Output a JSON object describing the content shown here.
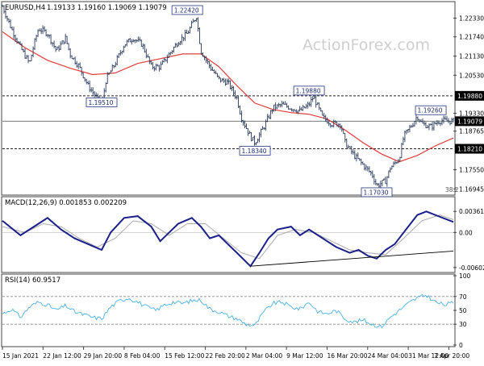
{
  "chart_data": [
    {
      "type": "candlestick-line",
      "panel": "price",
      "title": "EURUSD,H4",
      "ohlc_label": "1.19133 1.19160 1.19069 1.19079",
      "watermark": "ActionForex.com",
      "ylim": [
        1.168,
        1.228
      ],
      "y_ticks": [
        "1.22330",
        "1.21740",
        "1.21130",
        "1.20530",
        "1.19330",
        "1.18765",
        "1.17550",
        "1.16945"
      ],
      "y_tick_values": [
        1.2233,
        1.2174,
        1.2113,
        1.2053,
        1.1933,
        1.18765,
        1.1755,
        1.16945
      ],
      "h_lines": [
        {
          "label": "1.19880",
          "value": 1.1988,
          "style": "dashed"
        },
        {
          "label": "1.19079",
          "value": 1.19079,
          "style": "solid"
        },
        {
          "label": "1.18210",
          "value": 1.1821,
          "style": "dashed"
        }
      ],
      "callouts": [
        {
          "label": "1.22420",
          "x": 0.41,
          "value": 1.2242
        },
        {
          "label": "1.19510",
          "x": 0.22,
          "value": 1.1951
        },
        {
          "label": "1.18340",
          "x": 0.56,
          "value": 1.1834
        },
        {
          "label": "1.19880",
          "x": 0.68,
          "value": 1.1988
        },
        {
          "label": "1.17030",
          "x": 0.83,
          "value": 1.1703
        },
        {
          "label": "1.19260",
          "x": 0.95,
          "value": 1.1926
        }
      ],
      "fib_label": "38.2",
      "price": [
        [
          0.0,
          1.227
        ],
        [
          0.02,
          1.22
        ],
        [
          0.04,
          1.214
        ],
        [
          0.06,
          1.209
        ],
        [
          0.07,
          1.215
        ],
        [
          0.08,
          1.22
        ],
        [
          0.1,
          1.2185
        ],
        [
          0.12,
          1.213
        ],
        [
          0.14,
          1.217
        ],
        [
          0.15,
          1.212
        ],
        [
          0.17,
          1.208
        ],
        [
          0.19,
          1.202
        ],
        [
          0.21,
          1.198
        ],
        [
          0.22,
          1.1955
        ],
        [
          0.23,
          1.204
        ],
        [
          0.25,
          1.209
        ],
        [
          0.27,
          1.215
        ],
        [
          0.29,
          1.217
        ],
        [
          0.31,
          1.215
        ],
        [
          0.33,
          1.208
        ],
        [
          0.35,
          1.208
        ],
        [
          0.37,
          1.212
        ],
        [
          0.39,
          1.216
        ],
        [
          0.41,
          1.2185
        ],
        [
          0.43,
          1.224
        ],
        [
          0.44,
          1.213
        ],
        [
          0.46,
          1.208
        ],
        [
          0.48,
          1.204
        ],
        [
          0.5,
          1.203
        ],
        [
          0.52,
          1.198
        ],
        [
          0.53,
          1.192
        ],
        [
          0.55,
          1.186
        ],
        [
          0.56,
          1.184
        ],
        [
          0.58,
          1.189
        ],
        [
          0.6,
          1.195
        ],
        [
          0.62,
          1.196
        ],
        [
          0.64,
          1.195
        ],
        [
          0.66,
          1.194
        ],
        [
          0.68,
          1.196
        ],
        [
          0.69,
          1.1985
        ],
        [
          0.71,
          1.192
        ],
        [
          0.73,
          1.19
        ],
        [
          0.75,
          1.19
        ],
        [
          0.76,
          1.184
        ],
        [
          0.78,
          1.18
        ],
        [
          0.8,
          1.177
        ],
        [
          0.82,
          1.174
        ],
        [
          0.83,
          1.1705
        ],
        [
          0.85,
          1.172
        ],
        [
          0.86,
          1.176
        ],
        [
          0.88,
          1.179
        ],
        [
          0.89,
          1.186
        ],
        [
          0.91,
          1.19
        ],
        [
          0.92,
          1.1925
        ],
        [
          0.93,
          1.19
        ],
        [
          0.95,
          1.189
        ],
        [
          0.97,
          1.191
        ],
        [
          1.0,
          1.1908
        ]
      ],
      "ma": [
        [
          0.0,
          1.219
        ],
        [
          0.05,
          1.214
        ],
        [
          0.1,
          1.21
        ],
        [
          0.15,
          1.2075
        ],
        [
          0.2,
          1.2055
        ],
        [
          0.25,
          1.206
        ],
        [
          0.3,
          1.209
        ],
        [
          0.35,
          1.2105
        ],
        [
          0.4,
          1.212
        ],
        [
          0.44,
          1.212
        ],
        [
          0.48,
          1.208
        ],
        [
          0.52,
          1.202
        ],
        [
          0.56,
          1.1965
        ],
        [
          0.6,
          1.1945
        ],
        [
          0.64,
          1.1935
        ],
        [
          0.68,
          1.193
        ],
        [
          0.72,
          1.1915
        ],
        [
          0.76,
          1.188
        ],
        [
          0.8,
          1.184
        ],
        [
          0.84,
          1.1805
        ],
        [
          0.88,
          1.178
        ],
        [
          0.92,
          1.18
        ],
        [
          0.96,
          1.183
        ],
        [
          1.0,
          1.1855
        ]
      ]
    },
    {
      "type": "line",
      "panel": "macd",
      "title": "MACD(12,26,9) 0.001853 0.002209",
      "ylim": [
        -0.0066,
        0.0042
      ],
      "y_ticks": [
        "0.003615",
        "0.00",
        "-0.006026"
      ],
      "y_tick_values": [
        0.003615,
        0.0,
        -0.006026
      ],
      "series": [
        {
          "name": "",
          "values": [
            [
              0.0,
              0.002
            ],
            [
              0.04,
              -0.0005
            ],
            [
              0.07,
              0.001
            ],
            [
              0.1,
              0.0025
            ],
            [
              0.13,
              0.0005
            ],
            [
              0.16,
              -0.001
            ],
            [
              0.19,
              -0.002
            ],
            [
              0.22,
              -0.003
            ],
            [
              0.24,
              0.0
            ],
            [
              0.27,
              0.0025
            ],
            [
              0.3,
              0.0028
            ],
            [
              0.33,
              0.001
            ],
            [
              0.35,
              -0.0015
            ],
            [
              0.37,
              0.0
            ],
            [
              0.39,
              0.0015
            ],
            [
              0.42,
              0.0025
            ],
            [
              0.44,
              0.001
            ],
            [
              0.46,
              -0.001
            ],
            [
              0.48,
              -0.0005
            ],
            [
              0.5,
              -0.002
            ],
            [
              0.52,
              -0.0035
            ],
            [
              0.55,
              -0.0058
            ],
            [
              0.57,
              -0.0035
            ],
            [
              0.59,
              -0.001
            ],
            [
              0.61,
              0.0005
            ],
            [
              0.64,
              0.001
            ],
            [
              0.66,
              -0.0005
            ],
            [
              0.68,
              0.0005
            ],
            [
              0.7,
              -0.0005
            ],
            [
              0.72,
              -0.0015
            ],
            [
              0.74,
              -0.0025
            ],
            [
              0.77,
              -0.0035
            ],
            [
              0.79,
              -0.003
            ],
            [
              0.81,
              -0.004
            ],
            [
              0.83,
              -0.0045
            ],
            [
              0.85,
              -0.003
            ],
            [
              0.87,
              -0.002
            ],
            [
              0.89,
              0.0
            ],
            [
              0.92,
              0.003
            ],
            [
              0.94,
              0.0036
            ],
            [
              0.96,
              0.003
            ],
            [
              1.0,
              0.0018
            ]
          ]
        },
        {
          "name": "",
          "values": [
            [
              0.0,
              0.001
            ],
            [
              0.05,
              0.0
            ],
            [
              0.09,
              0.0015
            ],
            [
              0.13,
              0.001
            ],
            [
              0.17,
              -0.001
            ],
            [
              0.21,
              -0.0025
            ],
            [
              0.25,
              -0.001
            ],
            [
              0.29,
              0.002
            ],
            [
              0.33,
              0.0015
            ],
            [
              0.37,
              -0.0005
            ],
            [
              0.41,
              0.0015
            ],
            [
              0.45,
              0.0015
            ],
            [
              0.49,
              -0.001
            ],
            [
              0.53,
              -0.0035
            ],
            [
              0.57,
              -0.0045
            ],
            [
              0.61,
              -0.0005
            ],
            [
              0.65,
              0.0005
            ],
            [
              0.69,
              0.0
            ],
            [
              0.73,
              -0.0015
            ],
            [
              0.77,
              -0.003
            ],
            [
              0.81,
              -0.0035
            ],
            [
              0.85,
              -0.0038
            ],
            [
              0.89,
              -0.001
            ],
            [
              0.93,
              0.002
            ],
            [
              0.97,
              0.003
            ],
            [
              1.0,
              0.0022
            ]
          ]
        }
      ],
      "trendline": [
        [
          0.55,
          -0.0058
        ],
        [
          1.0,
          -0.0032
        ]
      ]
    },
    {
      "type": "line",
      "panel": "rsi",
      "title": "RSI(14) 60.9517",
      "ylim": [
        0,
        100
      ],
      "y_ticks": [
        "100",
        "70",
        "50",
        "30",
        "0"
      ],
      "y_tick_values": [
        100,
        70,
        50,
        30,
        0
      ],
      "h_lines": [
        70,
        30
      ],
      "series": [
        {
          "name": "",
          "values": [
            [
              0.0,
              45
            ],
            [
              0.02,
              52
            ],
            [
              0.04,
              40
            ],
            [
              0.06,
              55
            ],
            [
              0.08,
              62
            ],
            [
              0.1,
              58
            ],
            [
              0.12,
              50
            ],
            [
              0.14,
              57
            ],
            [
              0.16,
              48
            ],
            [
              0.18,
              44
            ],
            [
              0.2,
              40
            ],
            [
              0.22,
              38
            ],
            [
              0.24,
              55
            ],
            [
              0.26,
              64
            ],
            [
              0.28,
              68
            ],
            [
              0.3,
              62
            ],
            [
              0.32,
              55
            ],
            [
              0.34,
              50
            ],
            [
              0.36,
              58
            ],
            [
              0.38,
              62
            ],
            [
              0.4,
              60
            ],
            [
              0.42,
              64
            ],
            [
              0.44,
              65
            ],
            [
              0.46,
              52
            ],
            [
              0.48,
              48
            ],
            [
              0.5,
              42
            ],
            [
              0.52,
              38
            ],
            [
              0.54,
              30
            ],
            [
              0.56,
              28
            ],
            [
              0.58,
              48
            ],
            [
              0.6,
              60
            ],
            [
              0.62,
              62
            ],
            [
              0.64,
              55
            ],
            [
              0.66,
              52
            ],
            [
              0.68,
              62
            ],
            [
              0.7,
              48
            ],
            [
              0.72,
              45
            ],
            [
              0.74,
              50
            ],
            [
              0.76,
              38
            ],
            [
              0.78,
              33
            ],
            [
              0.8,
              36
            ],
            [
              0.82,
              30
            ],
            [
              0.84,
              26
            ],
            [
              0.86,
              40
            ],
            [
              0.88,
              50
            ],
            [
              0.9,
              60
            ],
            [
              0.92,
              68
            ],
            [
              0.94,
              72
            ],
            [
              0.96,
              62
            ],
            [
              0.98,
              58
            ],
            [
              1.0,
              61
            ]
          ]
        }
      ]
    }
  ],
  "x_axis": {
    "labels": [
      "15 Jan 2021",
      "22 Jan 12:00",
      "29 Jan 20:00",
      "8 Feb 04:00",
      "15 Feb 12:00",
      "22 Feb 20:00",
      "2 Mar 04:00",
      "9 Mar 12:00",
      "16 Mar 20:00",
      "24 Mar 04:00",
      "31 Mar 12:00",
      "7 Apr 20:00"
    ],
    "positions": [
      0.0,
      0.09,
      0.18,
      0.27,
      0.36,
      0.45,
      0.54,
      0.63,
      0.72,
      0.81,
      0.9,
      0.99
    ]
  },
  "colors": {
    "price": "#2a3a5c",
    "ma": "#e03a3a",
    "macd": "#1a1f8a",
    "signal": "#aaaaaa",
    "rsi": "#4ab0e0",
    "callout_border": "#3a4a8a",
    "callout_text": "#1a2a6a",
    "axis_label_box": "#000000",
    "watermark": "#cfcfcf"
  }
}
